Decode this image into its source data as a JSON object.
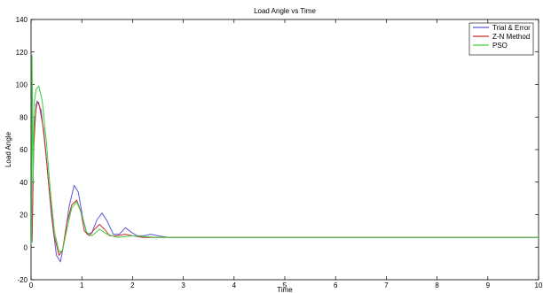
{
  "chart_data": {
    "type": "line",
    "title": "Load Angle vs Time",
    "xlabel": "Time",
    "ylabel": "Load Angle",
    "xlim": [
      0,
      10
    ],
    "ylim": [
      -20,
      140
    ],
    "xticks": [
      0,
      1,
      2,
      3,
      4,
      5,
      6,
      7,
      8,
      9,
      10
    ],
    "yticks": [
      -20,
      0,
      20,
      40,
      60,
      80,
      100,
      120,
      140
    ],
    "grid": false,
    "legend": "top-right",
    "series": [
      {
        "name": "Trial & Error",
        "color": "#5b5bd6",
        "x": [
          0,
          0.02,
          0.06,
          0.12,
          0.2,
          0.3,
          0.4,
          0.5,
          0.58,
          0.66,
          0.75,
          0.85,
          0.93,
          1.02,
          1.1,
          1.2,
          1.3,
          1.4,
          1.5,
          1.62,
          1.74,
          1.86,
          1.98,
          2.1,
          2.22,
          2.36,
          2.5,
          2.7,
          3.0,
          4.0,
          5.0,
          6.0,
          7.0,
          8.0,
          9.0,
          10.0
        ],
        "y": [
          4,
          3,
          75,
          90,
          84,
          55,
          20,
          -5,
          -9,
          5,
          25,
          38,
          34,
          18,
          8,
          9,
          17,
          21,
          16,
          8,
          8,
          12,
          9,
          7,
          7,
          8,
          7,
          6,
          6,
          6,
          6,
          6,
          6,
          6,
          6,
          6
        ]
      },
      {
        "name": "Z-N Method",
        "color": "#c83030",
        "x": [
          0,
          0.02,
          0.05,
          0.1,
          0.15,
          0.25,
          0.35,
          0.45,
          0.55,
          0.62,
          0.7,
          0.8,
          0.9,
          0.98,
          1.05,
          1.15,
          1.25,
          1.35,
          1.45,
          1.55,
          1.7,
          1.85,
          2.0,
          2.2,
          2.5,
          3.0,
          4.0,
          5.0,
          6.0,
          7.0,
          8.0,
          9.0,
          10.0
        ],
        "y": [
          4,
          4,
          60,
          88,
          89,
          72,
          38,
          8,
          -5,
          -2,
          14,
          26,
          29,
          22,
          10,
          7,
          11,
          14,
          11,
          7,
          7,
          8,
          7,
          6,
          6,
          6,
          6,
          6,
          6,
          6,
          6,
          6,
          6
        ]
      },
      {
        "name": "PSO",
        "color": "#3ecf3e",
        "x": [
          0,
          0.01,
          0.02,
          0.04,
          0.06,
          0.1,
          0.15,
          0.22,
          0.3,
          0.38,
          0.46,
          0.55,
          0.62,
          0.7,
          0.8,
          0.9,
          1.0,
          1.1,
          1.2,
          1.35,
          1.5,
          1.7,
          2.0,
          2.5,
          3.0,
          4.0,
          5.0,
          6.0,
          7.0,
          8.0,
          9.0,
          10.0
        ],
        "y": [
          2,
          3,
          118,
          40,
          88,
          97,
          99,
          90,
          65,
          35,
          10,
          -3,
          -2,
          10,
          24,
          28,
          20,
          9,
          7,
          11,
          8,
          6,
          7,
          6,
          6,
          6,
          6,
          6,
          6,
          6,
          6,
          6
        ]
      }
    ]
  }
}
